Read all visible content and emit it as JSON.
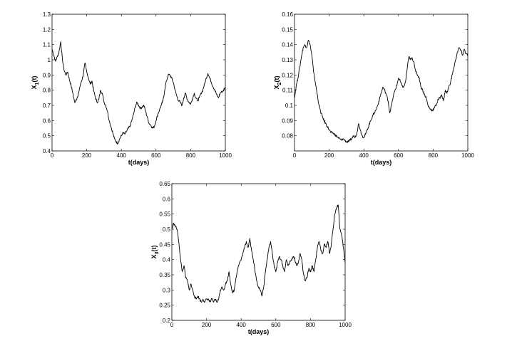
{
  "chart_data": [
    {
      "type": "line",
      "xlabel": "t(days)",
      "ylabel": "X",
      "ylabel_sub": "1",
      "ylabel_suffix": "(t)",
      "xlim": [
        0,
        1000
      ],
      "ylim": [
        0.4,
        1.3
      ],
      "xticks": [
        0,
        200,
        400,
        600,
        800,
        1000
      ],
      "yticks": [
        0.4,
        0.5,
        0.6,
        0.7,
        0.8,
        0.9,
        1,
        1.1,
        1.2,
        1.3
      ],
      "ytick_labels": [
        "0.4",
        "0.5",
        "0.6",
        "0.7",
        "0.8",
        "0.9",
        "1",
        "1.1",
        "1.2",
        "1.3"
      ],
      "xtick_labels": [
        "0",
        "200",
        "400",
        "600",
        "800",
        "1000"
      ],
      "grid": false,
      "series": [
        {
          "x": [
            0,
            10,
            20,
            30,
            40,
            50,
            60,
            70,
            80,
            90,
            100,
            110,
            120,
            130,
            140,
            150,
            160,
            170,
            180,
            190,
            200,
            210,
            220,
            230,
            240,
            250,
            260,
            270,
            280,
            290,
            300,
            310,
            320,
            330,
            340,
            350,
            360,
            370,
            380,
            390,
            400,
            410,
            420,
            430,
            440,
            450,
            460,
            470,
            480,
            490,
            500,
            510,
            520,
            530,
            540,
            550,
            560,
            570,
            580,
            590,
            600,
            610,
            620,
            630,
            640,
            650,
            660,
            670,
            680,
            690,
            700,
            710,
            720,
            730,
            740,
            750,
            760,
            770,
            780,
            790,
            800,
            810,
            820,
            830,
            840,
            850,
            860,
            870,
            880,
            890,
            900,
            910,
            920,
            930,
            940,
            950,
            960,
            970,
            980,
            990,
            1000
          ],
          "values": [
            1.07,
            1.03,
            0.99,
            1.02,
            1.05,
            1.12,
            1.0,
            0.93,
            0.9,
            0.92,
            0.87,
            0.83,
            0.78,
            0.72,
            0.74,
            0.76,
            0.82,
            0.86,
            0.9,
            0.98,
            0.92,
            0.88,
            0.84,
            0.86,
            0.8,
            0.75,
            0.72,
            0.74,
            0.8,
            0.78,
            0.72,
            0.7,
            0.66,
            0.6,
            0.56,
            0.52,
            0.48,
            0.46,
            0.45,
            0.48,
            0.5,
            0.52,
            0.51,
            0.53,
            0.55,
            0.56,
            0.6,
            0.64,
            0.69,
            0.72,
            0.7,
            0.68,
            0.69,
            0.7,
            0.66,
            0.62,
            0.58,
            0.57,
            0.55,
            0.56,
            0.6,
            0.64,
            0.67,
            0.7,
            0.73,
            0.8,
            0.86,
            0.9,
            0.9,
            0.88,
            0.85,
            0.8,
            0.76,
            0.73,
            0.72,
            0.7,
            0.75,
            0.78,
            0.74,
            0.72,
            0.71,
            0.74,
            0.78,
            0.75,
            0.73,
            0.75,
            0.78,
            0.8,
            0.84,
            0.88,
            0.91,
            0.88,
            0.85,
            0.82,
            0.8,
            0.77,
            0.75,
            0.78,
            0.79,
            0.8,
            0.82
          ]
        }
      ]
    },
    {
      "type": "line",
      "xlabel": "t(days)",
      "ylabel": "X",
      "ylabel_sub": "2",
      "ylabel_suffix": "(t)",
      "xlim": [
        0,
        1000
      ],
      "ylim": [
        0.07,
        0.16
      ],
      "xticks": [
        0,
        200,
        400,
        600,
        800,
        1000
      ],
      "yticks": [
        0.08,
        0.09,
        0.1,
        0.11,
        0.12,
        0.13,
        0.14,
        0.15,
        0.16
      ],
      "ytick_labels": [
        "0.08",
        "0.09",
        "0.1",
        "0.11",
        "0.12",
        "0.13",
        "0.14",
        "0.15",
        "0.16"
      ],
      "xtick_labels": [
        "0",
        "200",
        "400",
        "600",
        "800",
        "1000"
      ],
      "grid": false,
      "series": [
        {
          "x": [
            0,
            10,
            20,
            30,
            40,
            50,
            60,
            70,
            80,
            90,
            100,
            110,
            120,
            130,
            140,
            150,
            160,
            170,
            180,
            190,
            200,
            210,
            220,
            230,
            240,
            250,
            260,
            270,
            280,
            290,
            300,
            310,
            320,
            330,
            340,
            350,
            360,
            370,
            380,
            390,
            400,
            410,
            420,
            430,
            440,
            450,
            460,
            470,
            480,
            490,
            500,
            510,
            520,
            530,
            540,
            550,
            560,
            570,
            580,
            590,
            600,
            610,
            620,
            630,
            640,
            650,
            660,
            670,
            680,
            690,
            700,
            710,
            720,
            730,
            740,
            750,
            760,
            770,
            780,
            790,
            800,
            810,
            820,
            830,
            840,
            850,
            860,
            870,
            880,
            890,
            900,
            910,
            920,
            930,
            940,
            950,
            960,
            970,
            980,
            990,
            1000
          ],
          "values": [
            0.105,
            0.113,
            0.118,
            0.125,
            0.132,
            0.138,
            0.14,
            0.138,
            0.143,
            0.14,
            0.133,
            0.122,
            0.115,
            0.108,
            0.101,
            0.096,
            0.093,
            0.09,
            0.088,
            0.086,
            0.084,
            0.082,
            0.082,
            0.081,
            0.08,
            0.079,
            0.078,
            0.077,
            0.078,
            0.077,
            0.076,
            0.076,
            0.077,
            0.078,
            0.08,
            0.079,
            0.082,
            0.088,
            0.084,
            0.08,
            0.079,
            0.081,
            0.084,
            0.087,
            0.09,
            0.093,
            0.095,
            0.097,
            0.1,
            0.104,
            0.108,
            0.112,
            0.11,
            0.107,
            0.103,
            0.095,
            0.1,
            0.106,
            0.11,
            0.113,
            0.118,
            0.116,
            0.113,
            0.112,
            0.115,
            0.124,
            0.132,
            0.13,
            0.131,
            0.128,
            0.122,
            0.12,
            0.118,
            0.112,
            0.11,
            0.107,
            0.105,
            0.1,
            0.098,
            0.097,
            0.097,
            0.099,
            0.101,
            0.104,
            0.105,
            0.107,
            0.103,
            0.11,
            0.108,
            0.112,
            0.115,
            0.12,
            0.125,
            0.13,
            0.135,
            0.138,
            0.136,
            0.133,
            0.137,
            0.134,
            0.133
          ]
        }
      ]
    },
    {
      "type": "line",
      "xlabel": "t(days)",
      "ylabel": "X",
      "ylabel_sub": "3",
      "ylabel_suffix": "(t)",
      "xlim": [
        0,
        1000
      ],
      "ylim": [
        0.2,
        0.65
      ],
      "xticks": [
        0,
        200,
        400,
        600,
        800,
        1000
      ],
      "yticks": [
        0.2,
        0.25,
        0.3,
        0.35,
        0.4,
        0.45,
        0.5,
        0.55,
        0.6,
        0.65
      ],
      "ytick_labels": [
        "0.2",
        "0.25",
        "0.3",
        "0.35",
        "0.4",
        "0.45",
        "0.5",
        "0.55",
        "0.6",
        "0.65"
      ],
      "xtick_labels": [
        "0",
        "200",
        "400",
        "600",
        "800",
        "1000"
      ],
      "grid": false,
      "series": [
        {
          "x": [
            0,
            10,
            20,
            30,
            40,
            50,
            60,
            70,
            80,
            90,
            100,
            110,
            120,
            130,
            140,
            150,
            160,
            170,
            180,
            190,
            200,
            210,
            220,
            230,
            240,
            250,
            260,
            270,
            280,
            290,
            300,
            310,
            320,
            330,
            340,
            350,
            360,
            370,
            380,
            390,
            400,
            410,
            420,
            430,
            440,
            450,
            460,
            470,
            480,
            490,
            500,
            510,
            520,
            530,
            540,
            550,
            560,
            570,
            580,
            590,
            600,
            610,
            620,
            630,
            640,
            650,
            660,
            670,
            680,
            690,
            700,
            710,
            720,
            730,
            740,
            750,
            760,
            770,
            780,
            790,
            800,
            810,
            820,
            830,
            840,
            850,
            860,
            870,
            880,
            890,
            900,
            910,
            920,
            930,
            940,
            950,
            960,
            970,
            980,
            990,
            1000
          ],
          "values": [
            0.5,
            0.52,
            0.51,
            0.5,
            0.46,
            0.4,
            0.36,
            0.38,
            0.34,
            0.33,
            0.3,
            0.32,
            0.3,
            0.28,
            0.27,
            0.28,
            0.27,
            0.26,
            0.27,
            0.26,
            0.27,
            0.27,
            0.26,
            0.27,
            0.26,
            0.27,
            0.26,
            0.27,
            0.3,
            0.31,
            0.3,
            0.32,
            0.33,
            0.36,
            0.32,
            0.29,
            0.3,
            0.34,
            0.37,
            0.39,
            0.4,
            0.42,
            0.44,
            0.46,
            0.44,
            0.47,
            0.43,
            0.4,
            0.36,
            0.33,
            0.31,
            0.3,
            0.28,
            0.31,
            0.36,
            0.4,
            0.44,
            0.46,
            0.42,
            0.38,
            0.36,
            0.39,
            0.41,
            0.4,
            0.38,
            0.36,
            0.4,
            0.38,
            0.39,
            0.4,
            0.41,
            0.4,
            0.38,
            0.39,
            0.42,
            0.4,
            0.35,
            0.33,
            0.34,
            0.37,
            0.36,
            0.38,
            0.36,
            0.4,
            0.44,
            0.46,
            0.43,
            0.42,
            0.45,
            0.44,
            0.46,
            0.42,
            0.45,
            0.5,
            0.55,
            0.57,
            0.58,
            0.5,
            0.48,
            0.44,
            0.39
          ]
        }
      ]
    }
  ]
}
